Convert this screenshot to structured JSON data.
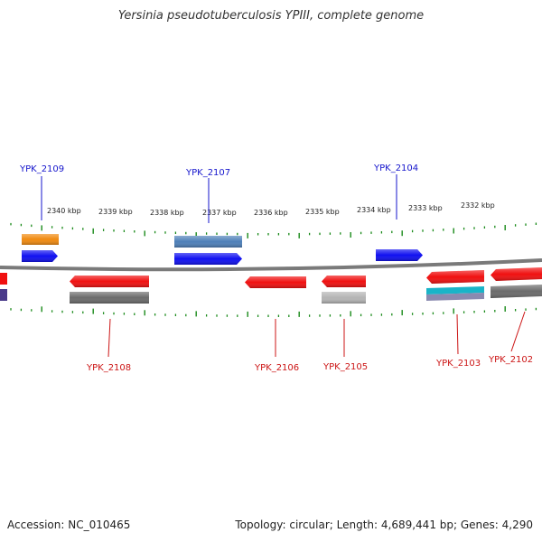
{
  "title": "Yersinia pseudotuberculosis YPIII, complete genome",
  "footer": {
    "accession": "Accession: NC_010465",
    "summary": "Topology: circular; Length: 4,689,441 bp; Genes: 4,290"
  },
  "ruler": {
    "ticks": [
      "2340 kbp",
      "2339 kbp",
      "2338 kbp",
      "2337 kbp",
      "2336 kbp",
      "2335 kbp",
      "2334 kbp",
      "2333 kbp",
      "2332 kbp"
    ]
  },
  "genes_top": [
    {
      "label": "YPK_2109",
      "color": "#1515ee"
    },
    {
      "label": "YPK_2107",
      "color": "#1515ee"
    },
    {
      "label": "YPK_2104",
      "color": "#1515ee"
    }
  ],
  "genes_bottom": [
    {
      "label": "YPK_2108",
      "color": "#ee1515"
    },
    {
      "label": "YPK_2106",
      "color": "#ee1515"
    },
    {
      "label": "YPK_2105",
      "color": "#ee1515"
    },
    {
      "label": "YPK_2103",
      "color": "#ee1515"
    },
    {
      "label": "YPK_2102",
      "color": "#ee1515"
    }
  ],
  "colors": {
    "forward": "#1010f0",
    "reverse": "#f01010",
    "orange": "#f08a10",
    "steel": "#4d7fb8",
    "gray": "#6b6b6b",
    "lightgray": "#b4b4b4",
    "cyan": "#19b4c8",
    "purple": "#4a3a8a",
    "backbone": "#7a7a7a",
    "tick": "#1a8a1a",
    "top_label": "#1515cc",
    "bottom_label": "#cc1515"
  }
}
